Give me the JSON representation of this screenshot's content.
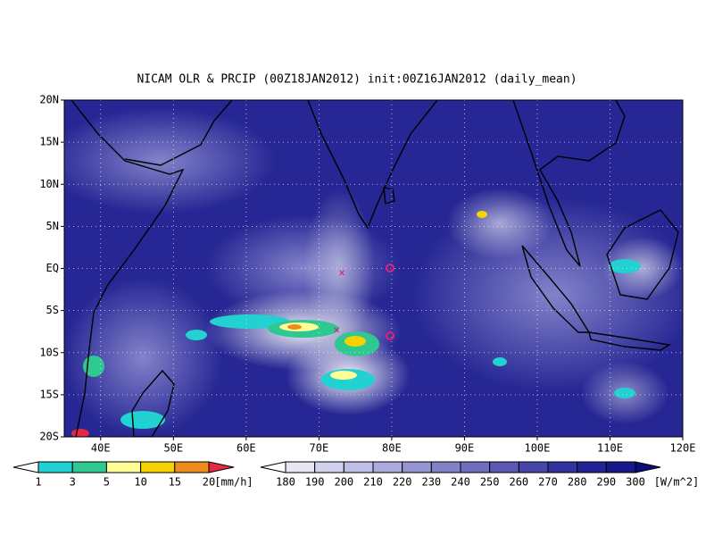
{
  "title": "NICAM OLR & PRCIP (00Z18JAN2012) init:00Z16JAN2012 (daily_mean)",
  "lat_labels": [
    "20N",
    "15N",
    "10N",
    "5N",
    "EQ",
    "5S",
    "10S",
    "15S",
    "20S"
  ],
  "lon_labels": [
    "40E",
    "50E",
    "60E",
    "70E",
    "80E",
    "90E",
    "100E",
    "110E",
    "120E"
  ],
  "precip_legend": {
    "labels": [
      "1",
      "3",
      "5",
      "10",
      "15",
      "20"
    ],
    "unit": "[mm/h]",
    "colors": [
      "#ffffff",
      "#22d2d2",
      "#2ec890",
      "#ffff96",
      "#f5d200",
      "#f08c1e",
      "#e62846"
    ]
  },
  "olr_legend": {
    "labels": [
      "180",
      "190",
      "200",
      "210",
      "220",
      "230",
      "240",
      "250",
      "260",
      "270",
      "280",
      "290",
      "300"
    ],
    "unit": "[W/m^2]",
    "colors": [
      "#ffffff",
      "#e6e6f5",
      "#d2d2ee",
      "#bebee6",
      "#aaaadc",
      "#9696d2",
      "#8282c8",
      "#6e6ebe",
      "#5a5ab4",
      "#4646aa",
      "#3232a0",
      "#232396",
      "#18188a",
      "#0c0c78"
    ]
  }
}
